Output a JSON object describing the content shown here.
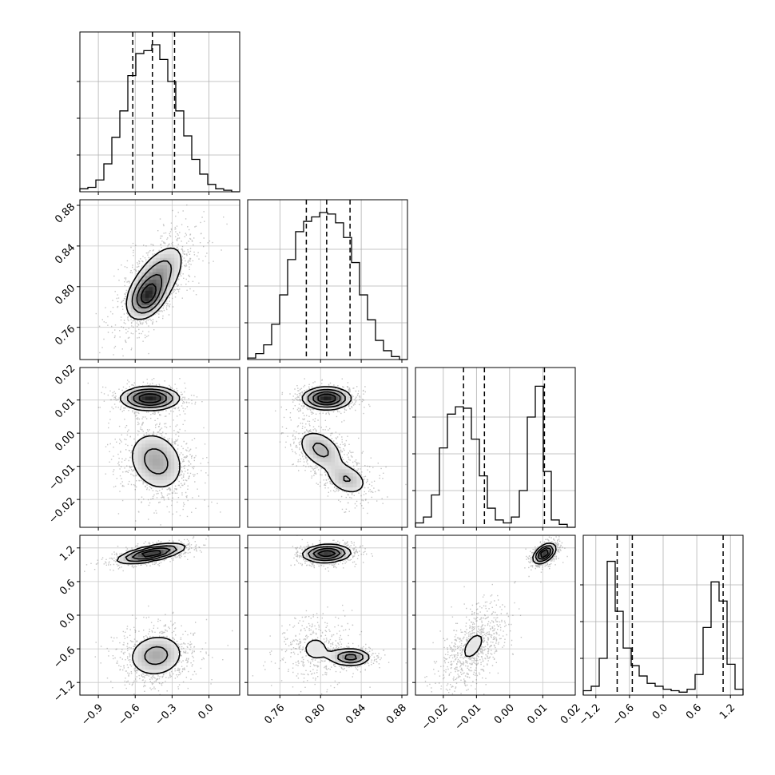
{
  "chart_data": {
    "type": "corner",
    "parameters": [
      {
        "name": "",
        "range": [
          -1.05,
          0.25
        ],
        "ticks": [
          -0.9,
          -0.6,
          -0.3,
          0.0
        ],
        "tick_labels": [
          "−0.9",
          "−0.6",
          "−0.3",
          "0.0"
        ]
      },
      {
        "name": "",
        "range": [
          0.7283,
          0.8855
        ],
        "ticks": [
          0.76,
          0.8,
          0.84,
          0.88
        ],
        "tick_labels": [
          "0.76",
          "0.80",
          "0.84",
          "0.88"
        ]
      },
      {
        "name": "",
        "range": [
          -0.0284,
          0.0198
        ],
        "ticks": [
          -0.02,
          -0.01,
          0.0,
          0.01,
          0.02
        ],
        "tick_labels": [
          "−0.02",
          "−0.01",
          "0.00",
          "0.01",
          "0.02"
        ]
      },
      {
        "name": "",
        "range": [
          -1.425,
          1.425
        ],
        "ticks": [
          -1.2,
          -0.6,
          0.0,
          0.6,
          1.2
        ],
        "tick_labels": [
          "−1.2",
          "−0.6",
          "0.0",
          "0.6",
          "1.2"
        ]
      }
    ],
    "histograms": [
      {
        "parameter": 0,
        "bins": 20,
        "counts": [
          0.02,
          0.03,
          0.08,
          0.19,
          0.37,
          0.55,
          0.79,
          0.94,
          0.96,
          1.0,
          0.9,
          0.75,
          0.55,
          0.38,
          0.22,
          0.12,
          0.05,
          0.02,
          0.01,
          0.0
        ],
        "quantiles": [
          -0.62,
          -0.46,
          -0.28
        ]
      },
      {
        "parameter": 1,
        "bins": 20,
        "counts": [
          0.01,
          0.04,
          0.1,
          0.24,
          0.44,
          0.68,
          0.87,
          0.94,
          0.97,
          1.0,
          0.99,
          0.93,
          0.83,
          0.66,
          0.44,
          0.27,
          0.13,
          0.06,
          0.02,
          0.0
        ],
        "quantiles": [
          0.786,
          0.806,
          0.829
        ]
      },
      {
        "parameter": 2,
        "bins": 20,
        "counts": [
          0.03,
          0.07,
          0.22,
          0.54,
          0.77,
          0.82,
          0.81,
          0.6,
          0.35,
          0.13,
          0.05,
          0.03,
          0.07,
          0.25,
          0.75,
          0.96,
          0.38,
          0.05,
          0.02,
          0.0
        ],
        "quantiles": [
          -0.0139,
          -0.0076,
          0.0105
        ]
      },
      {
        "parameter": 3,
        "bins": 20,
        "counts": [
          0.03,
          0.06,
          0.25,
          0.91,
          0.57,
          0.32,
          0.2,
          0.13,
          0.08,
          0.06,
          0.04,
          0.03,
          0.02,
          0.04,
          0.14,
          0.46,
          0.77,
          0.64,
          0.21,
          0.04
        ],
        "quantiles": [
          -0.82,
          -0.55,
          1.07
        ]
      }
    ],
    "joint_densities": [
      {
        "x": 0,
        "y": 1,
        "modes": [
          {
            "mean": [
              -0.44,
              0.805
            ],
            "sd": [
              0.13,
              0.02
            ],
            "corr": 0.62,
            "weight": 1.0
          },
          {
            "mean": [
              -0.5,
              0.79
            ],
            "sd": [
              0.07,
              0.01
            ],
            "corr": 0.3,
            "weight": 0.35
          }
        ]
      },
      {
        "x": 0,
        "y": 2,
        "modes": [
          {
            "mean": [
              -0.48,
              0.0105
            ],
            "sd": [
              0.12,
              0.0018
            ],
            "corr": 0.0,
            "weight": 0.45
          },
          {
            "mean": [
              -0.43,
              -0.0085
            ],
            "sd": [
              0.13,
              0.0052
            ],
            "corr": -0.2,
            "weight": 0.55
          }
        ]
      },
      {
        "x": 0,
        "y": 3,
        "modes": [
          {
            "mean": [
              -0.47,
              1.1
            ],
            "sd": [
              0.14,
              0.09
            ],
            "corr": 0.65,
            "weight": 0.45
          },
          {
            "mean": [
              -0.43,
              -0.72
            ],
            "sd": [
              0.13,
              0.22
            ],
            "corr": 0.1,
            "weight": 0.55
          }
        ]
      },
      {
        "x": 1,
        "y": 2,
        "modes": [
          {
            "mean": [
              0.806,
              0.0105
            ],
            "sd": [
              0.012,
              0.0017
            ],
            "corr": 0.0,
            "weight": 0.45
          },
          {
            "mean": [
              0.8,
              -0.005
            ],
            "sd": [
              0.013,
              0.0035
            ],
            "corr": -0.4,
            "weight": 0.33
          },
          {
            "mean": [
              0.826,
              -0.014
            ],
            "sd": [
              0.012,
              0.0028
            ],
            "corr": -0.3,
            "weight": 0.22
          }
        ]
      },
      {
        "x": 1,
        "y": 3,
        "modes": [
          {
            "mean": [
              0.806,
              1.1
            ],
            "sd": [
              0.012,
              0.08
            ],
            "corr": 0.1,
            "weight": 0.45
          },
          {
            "mean": [
              0.795,
              -0.6
            ],
            "sd": [
              0.015,
              0.25
            ],
            "corr": 0.0,
            "weight": 0.3
          },
          {
            "mean": [
              0.83,
              -0.75
            ],
            "sd": [
              0.01,
              0.08
            ],
            "corr": 0.0,
            "weight": 0.25
          }
        ]
      },
      {
        "x": 2,
        "y": 3,
        "modes": [
          {
            "mean": [
              0.0105,
              1.1
            ],
            "sd": [
              0.0017,
              0.09
            ],
            "corr": 0.5,
            "weight": 0.45
          },
          {
            "mean": [
              -0.011,
              -0.55
            ],
            "sd": [
              0.004,
              0.3
            ],
            "corr": 0.55,
            "weight": 0.55
          }
        ]
      }
    ],
    "contour_levels": 4,
    "grid": true
  }
}
